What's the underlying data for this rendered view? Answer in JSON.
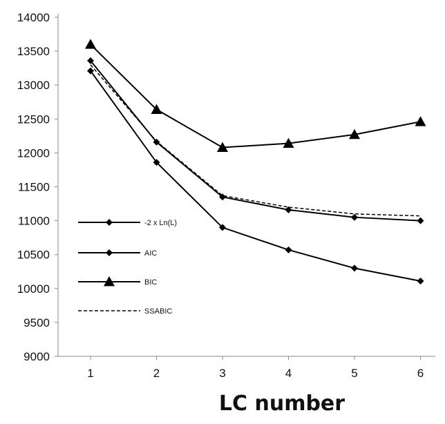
{
  "chart_data": {
    "type": "line",
    "xlabel": "LC number",
    "ylabel": "",
    "title": "",
    "categories": [
      "1",
      "2",
      "3",
      "4",
      "5",
      "6"
    ],
    "ylim": [
      9000,
      14000
    ],
    "yticks": [
      9000,
      9500,
      10000,
      10500,
      11000,
      11500,
      12000,
      12500,
      13000,
      13500,
      14000
    ],
    "grid": false,
    "legend_position": "left",
    "series": [
      {
        "name": "-2 x Ln(L)",
        "values": [
          13210,
          11860,
          10900,
          10570,
          10300,
          10110
        ],
        "marker": "diamond",
        "line": "solid",
        "color": "#000000"
      },
      {
        "name": "AIC",
        "values": [
          13360,
          12160,
          11350,
          11160,
          11050,
          11000
        ],
        "marker": "diamond",
        "line": "solid",
        "color": "#000000"
      },
      {
        "name": "BIC",
        "values": [
          13600,
          12640,
          12080,
          12140,
          12270,
          12460
        ],
        "marker": "triangle",
        "line": "solid",
        "color": "#000000"
      },
      {
        "name": "SSABIC",
        "values": [
          13300,
          12170,
          11370,
          11200,
          11100,
          11070
        ],
        "marker": "none",
        "line": "dashed",
        "color": "#000000"
      }
    ]
  }
}
